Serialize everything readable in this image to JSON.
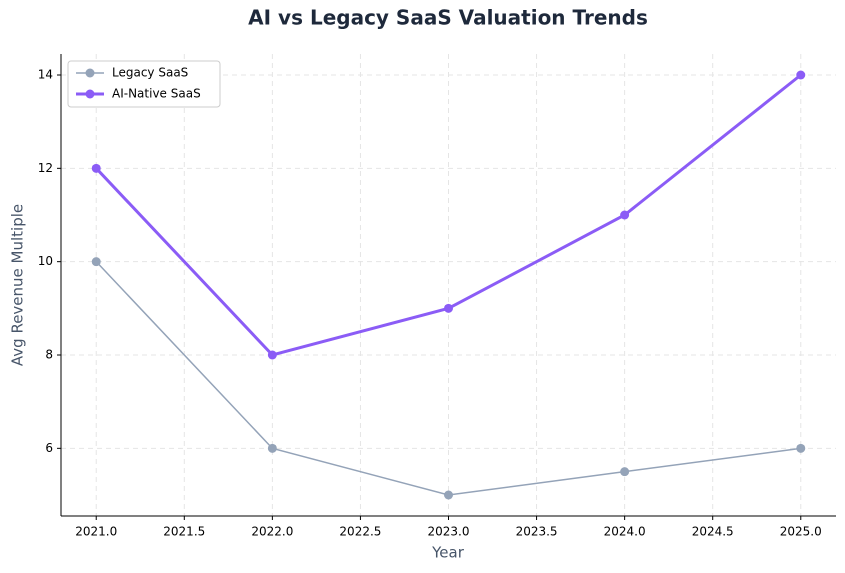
{
  "chart_data": {
    "type": "line",
    "title": "AI vs Legacy SaaS Valuation Trends",
    "x_label": "Year",
    "y_label": "Avg Revenue Multiple",
    "x": [
      2021,
      2022,
      2023,
      2024,
      2025
    ],
    "series": [
      {
        "name": "Legacy SaaS",
        "color": "#94a3b8",
        "width": 1.5,
        "values": [
          10,
          6,
          5,
          5.5,
          6
        ]
      },
      {
        "name": "AI-Native SaaS",
        "color": "#8b5cf6",
        "width": 3,
        "values": [
          12,
          8,
          9,
          11,
          14
        ]
      }
    ],
    "xlim": [
      2020.8,
      2025.2
    ],
    "xticks": [
      {
        "value": 2021,
        "label": "2021.0"
      },
      {
        "value": 2021.5,
        "label": "2021.5"
      },
      {
        "value": 2022,
        "label": "2022.0"
      },
      {
        "value": 2022.5,
        "label": "2022.5"
      },
      {
        "value": 2023,
        "label": "2023.0"
      },
      {
        "value": 2023.5,
        "label": "2023.5"
      },
      {
        "value": 2024,
        "label": "2024.0"
      },
      {
        "value": 2024.5,
        "label": "2024.5"
      },
      {
        "value": 2025,
        "label": "2025.0"
      }
    ],
    "ylim": [
      4.55,
      14.45
    ],
    "yticks": [
      6,
      8,
      10,
      12,
      14
    ],
    "grid": true,
    "legend": "upper-left"
  }
}
